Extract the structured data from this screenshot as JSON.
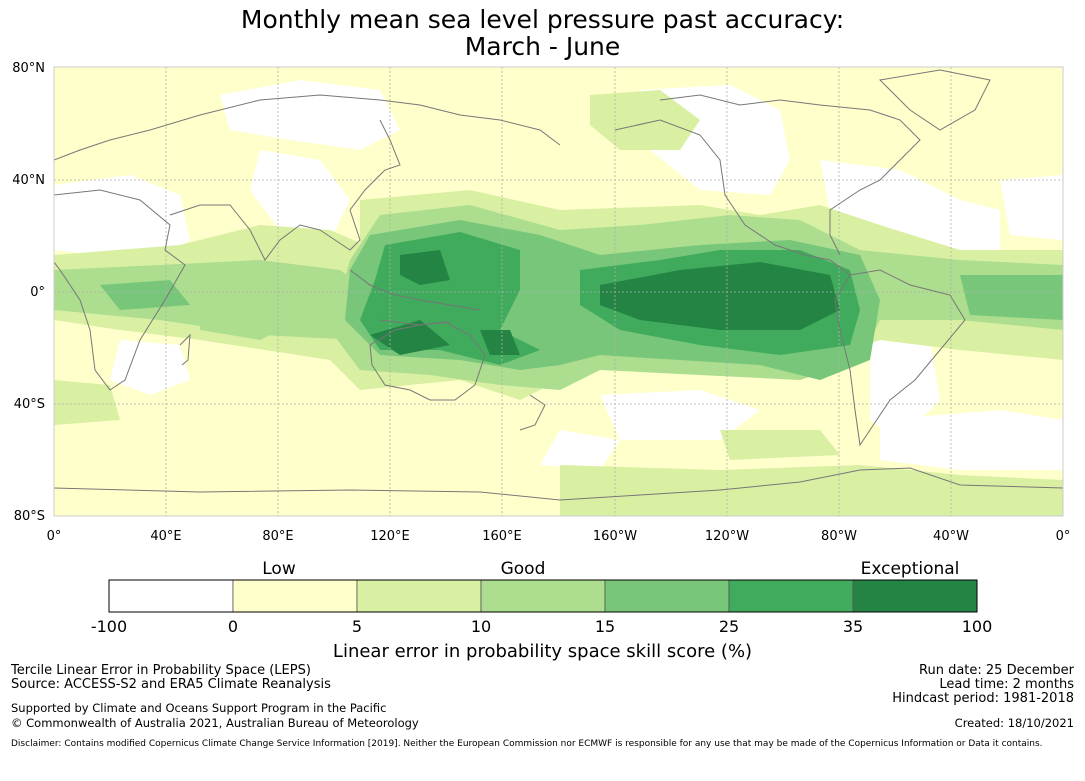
{
  "title": {
    "line1": "Monthly mean sea level pressure past accuracy:",
    "line2": "March - June"
  },
  "map": {
    "lat_labels": [
      "80°N",
      "40°N",
      "0°",
      "40°S",
      "80°S"
    ],
    "lon_labels": [
      "0°",
      "40°E",
      "80°E",
      "120°E",
      "160°E",
      "160°W",
      "120°W",
      "80°W",
      "40°W",
      "0°"
    ],
    "colors": {
      "land_outline": "#777777",
      "grid": "#b0b0b0"
    }
  },
  "colorbar": {
    "categories": [
      "Low",
      "Good",
      "Exceptional"
    ],
    "ticks": [
      "-100",
      "0",
      "5",
      "10",
      "15",
      "25",
      "35",
      "100"
    ],
    "colors": [
      "#ffffff",
      "#ffffcc",
      "#d9f0a3",
      "#addd8e",
      "#78c679",
      "#41ab5d",
      "#238443"
    ],
    "label": "Linear error in probability space skill score (%)"
  },
  "info": {
    "line1": "Tercile Linear Error in Probability Space (LEPS)",
    "line2": "Source: ACCESS-S2 and ERA5 Climate Reanalysis",
    "line3": "Supported by Climate and Oceans Support Program in the Pacific",
    "line4": "© Commonwealth of Australia 2021, Australian Bureau of Meteorology",
    "run_date": "Run date: 25 December",
    "lead_time": "Lead time: 2 months",
    "hindcast": "Hindcast period: 1981-2018",
    "created": "Created: 18/10/2021",
    "disclaimer": "Disclaimer: Contains modified Copernicus Climate Change Service Information [2019]. Neither the European Commission nor ECMWF is responsible for any use that may be made of the Copernicus Information or Data it contains."
  }
}
